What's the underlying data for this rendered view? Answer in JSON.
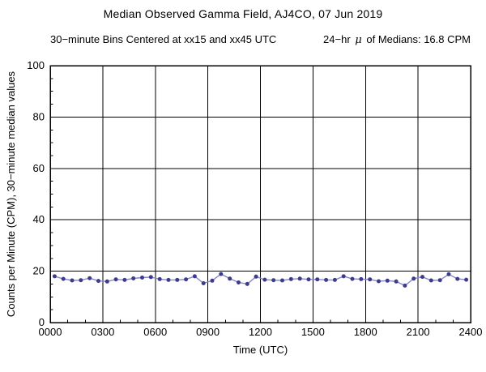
{
  "header": {
    "title": "Median Observed Gamma Field, AJ4CO, 07 Jun 2019",
    "subtitle_left": "30−minute Bins Centered at xx15 and xx45 UTC",
    "mean_prefix": "24−hr",
    "mean_mu": "μ",
    "mean_suffix": "of Medians: 16.8 CPM"
  },
  "colors": {
    "marker": "#3c3c8c",
    "line": "#8787c8",
    "grid": "#000000",
    "frame": "#000000",
    "text": "#000000",
    "background": "#ffffff"
  },
  "chart_data": {
    "type": "line",
    "title": "Median Observed Gamma Field, AJ4CO, 07 Jun 2019",
    "subtitle": "30−minute Bins Centered at xx15 and xx45 UTC     24−hr μ of Medians: 16.8 CPM",
    "mean_of_medians_cpm": 16.8,
    "xlabel": "Time (UTC)",
    "ylabel": "Counts per Minute (CPM), 30−minute median values",
    "xlim_hours": [
      0,
      24
    ],
    "ylim": [
      0,
      100
    ],
    "grid": true,
    "legend": "none",
    "x_ticks": [
      {
        "label": "0000",
        "hour": 0
      },
      {
        "label": "0300",
        "hour": 3
      },
      {
        "label": "0600",
        "hour": 6
      },
      {
        "label": "0900",
        "hour": 9
      },
      {
        "label": "1200",
        "hour": 12
      },
      {
        "label": "1500",
        "hour": 15
      },
      {
        "label": "1800",
        "hour": 18
      },
      {
        "label": "2100",
        "hour": 21
      },
      {
        "label": "2400",
        "hour": 24
      }
    ],
    "y_ticks": [
      {
        "label": "0",
        "value": 0
      },
      {
        "label": "20",
        "value": 20
      },
      {
        "label": "40",
        "value": 40
      },
      {
        "label": "60",
        "value": 60
      },
      {
        "label": "80",
        "value": 80
      },
      {
        "label": "100",
        "value": 100
      }
    ],
    "x_minor_step_hours": 1,
    "y_minor_step": 5,
    "x_grid_hours": [
      3,
      6,
      9,
      12,
      15,
      18,
      21
    ],
    "y_grid_values": [
      20,
      40,
      60,
      80
    ],
    "series": [
      {
        "marker_color": "#3c3c8c",
        "line_color": "#8787c8",
        "x_hours": [
          0.25,
          0.75,
          1.25,
          1.75,
          2.25,
          2.75,
          3.25,
          3.75,
          4.25,
          4.75,
          5.25,
          5.75,
          6.25,
          6.75,
          7.25,
          7.75,
          8.25,
          8.75,
          9.25,
          9.75,
          10.25,
          10.75,
          11.25,
          11.75,
          12.25,
          12.75,
          13.25,
          13.75,
          14.25,
          14.75,
          15.25,
          15.75,
          16.25,
          16.75,
          17.25,
          17.75,
          18.25,
          18.75,
          19.25,
          19.75,
          20.25,
          20.75,
          21.25,
          21.75,
          22.25,
          22.75,
          23.25,
          23.75
        ],
        "values": [
          18.0,
          17.0,
          16.4,
          16.5,
          17.3,
          16.2,
          16.0,
          16.8,
          16.6,
          17.2,
          17.5,
          17.7,
          16.9,
          16.6,
          16.6,
          16.8,
          18.0,
          15.3,
          16.3,
          18.9,
          17.1,
          15.6,
          15.0,
          17.9,
          16.7,
          16.5,
          16.4,
          16.9,
          17.1,
          16.8,
          16.8,
          16.6,
          16.6,
          18.0,
          17.0,
          16.9,
          16.8,
          16.1,
          16.3,
          16.0,
          14.4,
          17.1,
          17.8,
          16.4,
          16.5,
          18.8,
          17.0,
          16.7
        ]
      }
    ]
  }
}
